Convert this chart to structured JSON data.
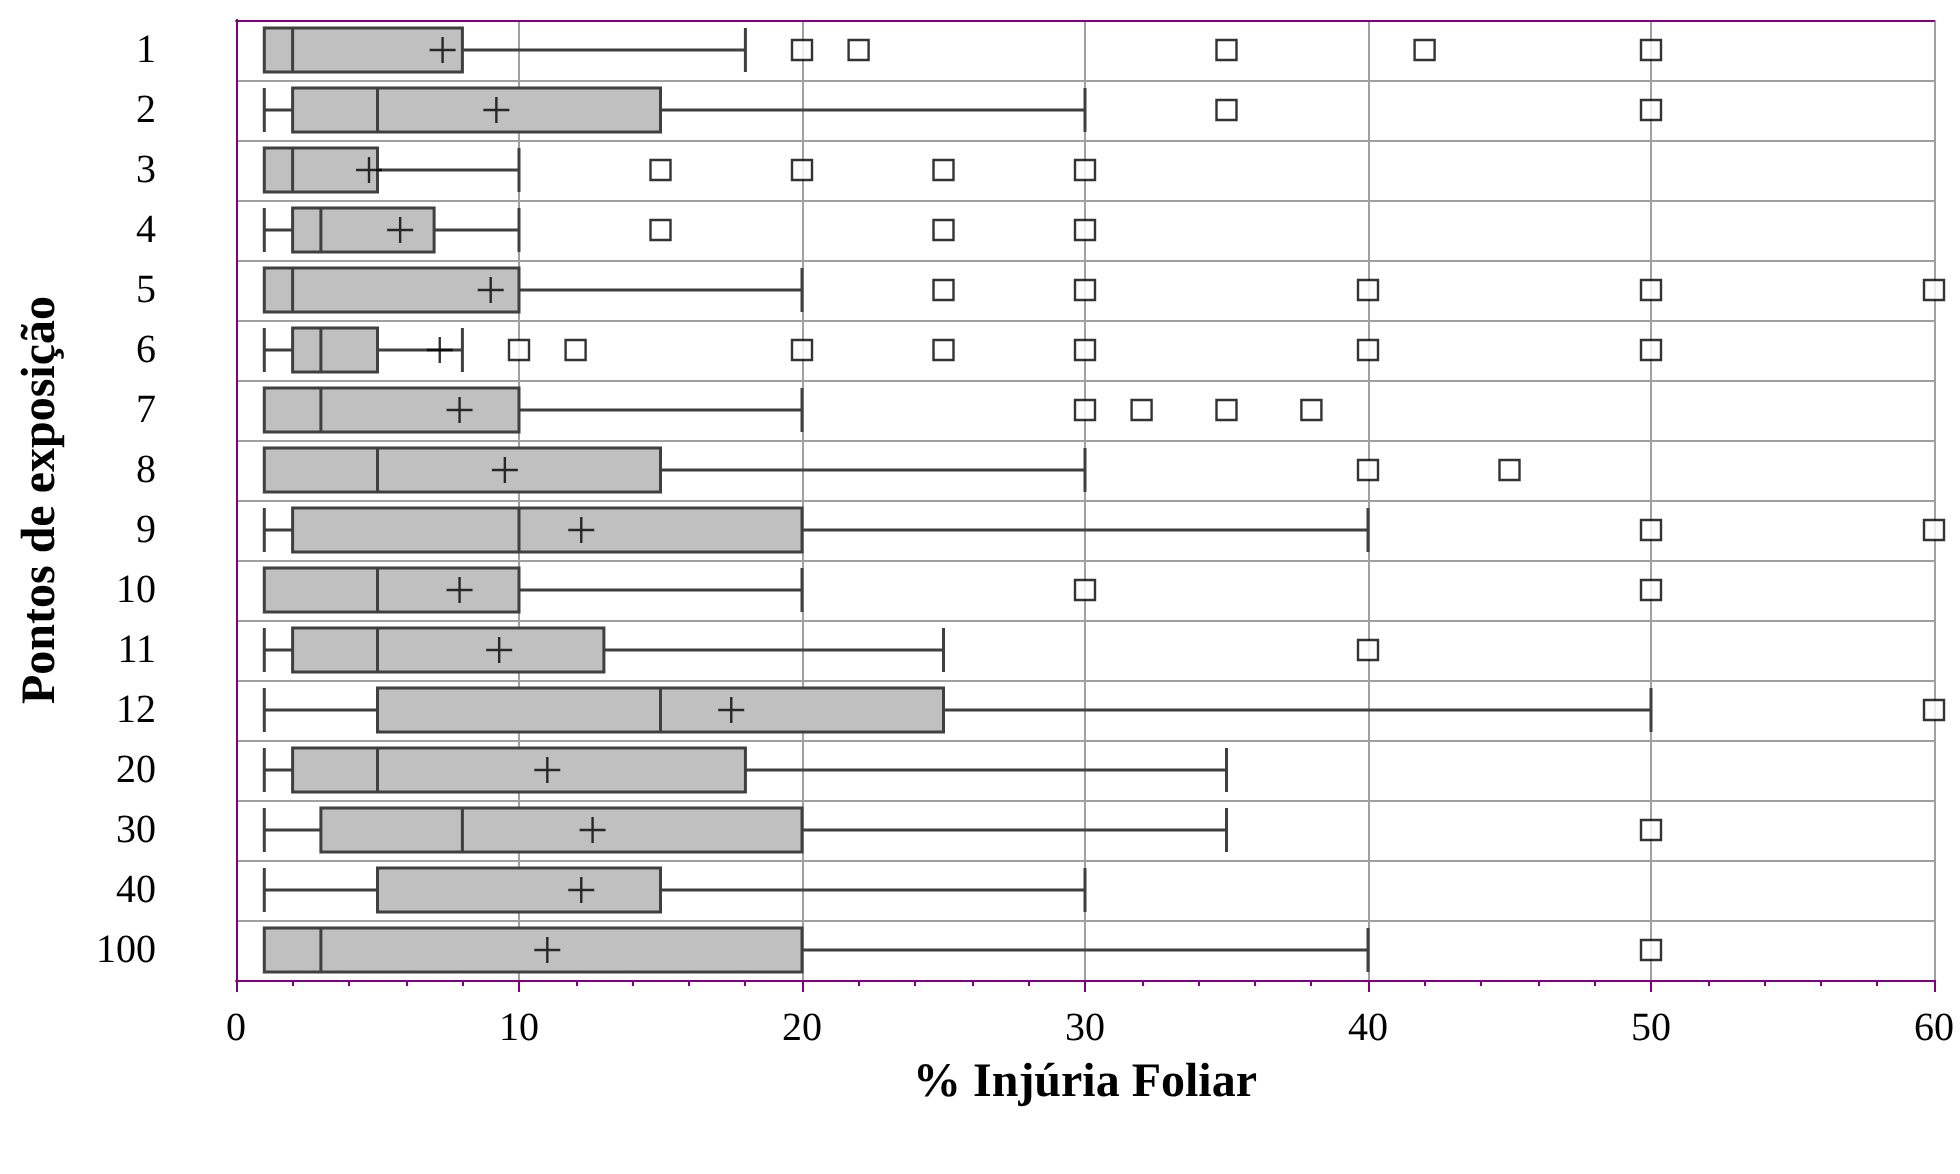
{
  "chart_data": {
    "type": "box",
    "orientation": "horizontal",
    "xlabel": "% Injúria Foliar",
    "ylabel": "Pontos de exposição",
    "categories": [
      "1",
      "2",
      "3",
      "4",
      "5",
      "6",
      "7",
      "8",
      "9",
      "10",
      "11",
      "12",
      "20",
      "30",
      "40",
      "100"
    ],
    "color": "#c0c0c0",
    "xlim": [
      0,
      60
    ],
    "xticks": [
      0,
      10,
      20,
      30,
      40,
      50,
      60
    ],
    "grid": true,
    "boxes": [
      {
        "low": 1,
        "q1": 1,
        "median": 2,
        "q3": 8,
        "high": 18,
        "mean": 7.3,
        "outliers": [
          20,
          22,
          35,
          42,
          50
        ]
      },
      {
        "low": 1,
        "q1": 2,
        "median": 5,
        "q3": 15,
        "high": 30,
        "mean": 9.2,
        "outliers": [
          35,
          50
        ]
      },
      {
        "low": 1,
        "q1": 1,
        "median": 2,
        "q3": 5,
        "high": 10,
        "mean": 4.7,
        "outliers": [
          15,
          20,
          25,
          30
        ]
      },
      {
        "low": 1,
        "q1": 2,
        "median": 3,
        "q3": 7,
        "high": 10,
        "mean": 5.8,
        "outliers": [
          15,
          25,
          30
        ]
      },
      {
        "low": 1,
        "q1": 1,
        "median": 2,
        "q3": 10,
        "high": 20,
        "mean": 9,
        "outliers": [
          25,
          30,
          40,
          50,
          60
        ]
      },
      {
        "low": 1,
        "q1": 2,
        "median": 3,
        "q3": 5,
        "high": 8,
        "mean": 7.2,
        "outliers": [
          10,
          12,
          20,
          25,
          30,
          40,
          50
        ]
      },
      {
        "low": 1,
        "q1": 1,
        "median": 3,
        "q3": 10,
        "high": 20,
        "mean": 7.9,
        "outliers": [
          30,
          32,
          35,
          38
        ]
      },
      {
        "low": 1,
        "q1": 1,
        "median": 5,
        "q3": 15,
        "high": 30,
        "mean": 9.5,
        "outliers": [
          40,
          45
        ]
      },
      {
        "low": 1,
        "q1": 2,
        "median": 10,
        "q3": 20,
        "high": 40,
        "mean": 12.2,
        "outliers": [
          50,
          60
        ]
      },
      {
        "low": 1,
        "q1": 1,
        "median": 5,
        "q3": 10,
        "high": 20,
        "mean": 7.9,
        "outliers": [
          30,
          50
        ]
      },
      {
        "low": 1,
        "q1": 2,
        "median": 5,
        "q3": 13,
        "high": 25,
        "mean": 9.3,
        "outliers": [
          40
        ]
      },
      {
        "low": 1,
        "q1": 5,
        "median": 15,
        "q3": 25,
        "high": 50,
        "mean": 17.5,
        "outliers": [
          60
        ]
      },
      {
        "low": 1,
        "q1": 2,
        "median": 5,
        "q3": 18,
        "high": 35,
        "mean": 11
      },
      {
        "low": 1,
        "q1": 3,
        "median": 8,
        "q3": 20,
        "high": 35,
        "mean": 12.6,
        "outliers": [
          50
        ]
      },
      {
        "low": 1,
        "q1": 5,
        "median": 5,
        "q3": 15,
        "high": 30,
        "mean": 12.2
      },
      {
        "low": 1,
        "q1": 1,
        "median": 3,
        "q3": 20,
        "high": 40,
        "mean": 11,
        "outliers": [
          50
        ]
      }
    ]
  }
}
